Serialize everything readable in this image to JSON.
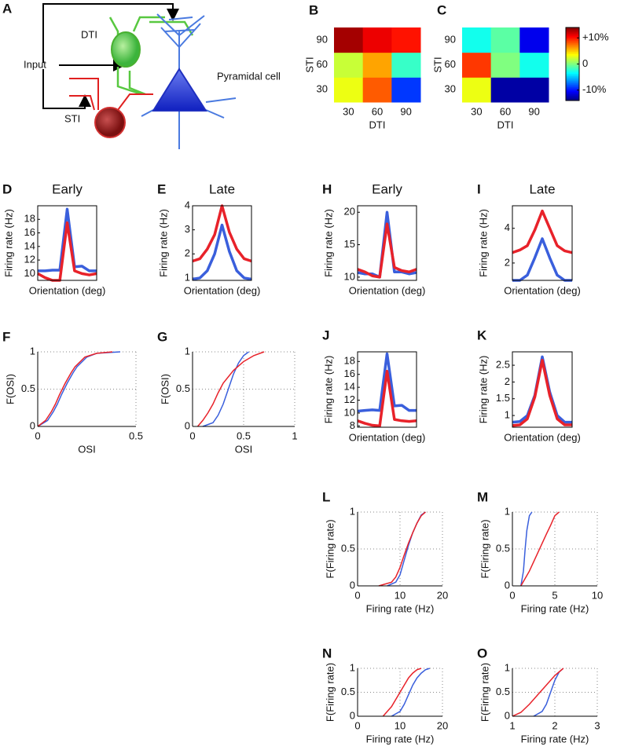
{
  "diagram": {
    "panel": "A",
    "labels": {
      "dti": "DTI",
      "input": "Input",
      "sti": "STI",
      "pyramidal": "Pyramidal cell"
    }
  },
  "chart_data": [
    {
      "type": "heatmap",
      "panel": "B",
      "xlabel": "DTI",
      "ylabel": "STI",
      "categories": [
        30,
        60,
        90
      ],
      "y_categories": [
        30,
        60,
        90
      ],
      "values": [
        [
          3,
          8,
          -9
        ],
        [
          2,
          6,
          -2
        ],
        [
          13,
          11,
          10
        ]
      ]
    },
    {
      "type": "heatmap",
      "panel": "C",
      "xlabel": "DTI",
      "ylabel": "STI",
      "categories": [
        30,
        60,
        90
      ],
      "y_categories": [
        30,
        60,
        90
      ],
      "values": [
        [
          3,
          -13,
          -13
        ],
        [
          9,
          0,
          -3
        ],
        [
          -3,
          -1,
          -11
        ]
      ]
    },
    {
      "type": "colorbar",
      "zlim": [
        -14,
        14
      ],
      "zticks": [
        {
          "value": 10,
          "label": "+10%"
        },
        0,
        {
          "value": -10,
          "label": "-10%"
        }
      ]
    },
    {
      "type": "line",
      "panel": "D",
      "title": "Early",
      "xlabel": "Orientation (deg)",
      "ylabel": "Firing rate (Hz)",
      "categories": [
        null,
        null,
        null,
        null,
        null,
        null,
        null,
        null,
        null
      ],
      "ylim": [
        9,
        20
      ],
      "yticks": [
        10,
        12,
        14,
        16,
        18
      ],
      "series": [
        {
          "color": "#3a5fdc",
          "values": [
            10.4,
            10.4,
            10.5,
            10.5,
            19.5,
            11,
            11.1,
            10.4,
            10.4
          ]
        },
        {
          "color": "#e8222a",
          "values": [
            10,
            9.4,
            9,
            9,
            17.5,
            10.4,
            10,
            9.8,
            10
          ]
        }
      ]
    },
    {
      "type": "line",
      "panel": "E",
      "title": "Late",
      "xlabel": "Orientation (deg)",
      "ylabel": "Firing rate (Hz)",
      "categories": [
        null,
        null,
        null,
        null,
        null,
        null,
        null,
        null,
        null
      ],
      "ylim": [
        0.9,
        4
      ],
      "yticks": [
        1,
        2,
        3,
        4
      ],
      "series": [
        {
          "color": "#3a5fdc",
          "values": [
            0.95,
            1.0,
            1.3,
            2.0,
            3.2,
            2.1,
            1.3,
            1.0,
            0.95
          ]
        },
        {
          "color": "#e8222a",
          "values": [
            1.7,
            1.8,
            2.2,
            2.8,
            4.0,
            2.9,
            2.2,
            1.8,
            1.7
          ]
        }
      ]
    },
    {
      "type": "line",
      "panel": "H",
      "title": "Early",
      "xlabel": "Orientation (deg)",
      "ylabel": "Firing rate (Hz)",
      "categories": [
        null,
        null,
        null,
        null,
        null,
        null,
        null,
        null,
        null
      ],
      "ylim": [
        9.5,
        21
      ],
      "yticks": [
        10,
        15,
        20
      ],
      "series": [
        {
          "color": "#3a5fdc",
          "values": [
            10.7,
            10.5,
            10.5,
            10,
            20,
            10.8,
            10.8,
            10.5,
            10.7
          ]
        },
        {
          "color": "#e8222a",
          "values": [
            11.2,
            10.8,
            10.2,
            10,
            18.2,
            11.5,
            11,
            10.8,
            11.2
          ]
        }
      ]
    },
    {
      "type": "line",
      "panel": "I",
      "title": "Late",
      "xlabel": "Orientation (deg)",
      "ylabel": "Firing rate (Hz)",
      "categories": [
        null,
        null,
        null,
        null,
        null,
        null,
        null,
        null,
        null
      ],
      "ylim": [
        1,
        5.3
      ],
      "yticks": [
        2,
        4
      ],
      "series": [
        {
          "color": "#3a5fdc",
          "values": [
            1,
            1,
            1.3,
            2.3,
            3.4,
            2.3,
            1.3,
            1,
            1
          ]
        },
        {
          "color": "#e8222a",
          "values": [
            2.6,
            2.75,
            3,
            3.9,
            5.0,
            4.0,
            3.0,
            2.7,
            2.6
          ]
        }
      ]
    },
    {
      "type": "line",
      "panel": "J",
      "xlabel": "Orientation (deg)",
      "ylabel": "Firing rate (Hz)",
      "categories": [
        null,
        null,
        null,
        null,
        null,
        null,
        null,
        null,
        null
      ],
      "ylim": [
        7.8,
        19.5
      ],
      "yticks": [
        8,
        10,
        12,
        14,
        16,
        18
      ],
      "series": [
        {
          "color": "#3a5fdc",
          "values": [
            10.3,
            10.4,
            10.5,
            10.4,
            19.2,
            11.1,
            11.2,
            10.4,
            10.4
          ]
        },
        {
          "color": "#e8222a",
          "values": [
            8.8,
            8.4,
            8.1,
            8,
            16.5,
            9,
            8.8,
            8.7,
            8.8
          ]
        }
      ]
    },
    {
      "type": "line",
      "panel": "K",
      "xlabel": "Orientation (deg)",
      "ylabel": "Firing rate (Hz)",
      "categories": [
        null,
        null,
        null,
        null,
        null,
        null,
        null,
        null,
        null
      ],
      "ylim": [
        0.65,
        2.9
      ],
      "yticks": [
        1,
        1.5,
        2,
        2.5
      ],
      "series": [
        {
          "color": "#3a5fdc",
          "values": [
            0.8,
            0.82,
            1.0,
            1.6,
            2.75,
            1.7,
            1.0,
            0.8,
            0.8
          ]
        },
        {
          "color": "#e8222a",
          "values": [
            0.7,
            0.72,
            0.9,
            1.55,
            2.65,
            1.6,
            0.9,
            0.72,
            0.72
          ]
        }
      ]
    },
    {
      "type": "cdf",
      "panel": "F",
      "xlabel": "OSI",
      "ylabel": "F(OSI)",
      "xlim": [
        0,
        0.5
      ],
      "xticks": [
        0,
        0.5
      ],
      "ylim": [
        0,
        1
      ],
      "yticks": [
        0,
        0.5,
        1
      ],
      "grid": true,
      "series": [
        {
          "color": "#3a5fdc",
          "x": [
            0,
            0.05,
            0.08,
            0.1,
            0.12,
            0.15,
            0.18,
            0.2,
            0.25,
            0.3,
            0.42
          ],
          "values": [
            0,
            0.08,
            0.2,
            0.3,
            0.42,
            0.58,
            0.72,
            0.8,
            0.93,
            0.98,
            1
          ]
        },
        {
          "color": "#e8222a",
          "x": [
            0,
            0.04,
            0.07,
            0.09,
            0.11,
            0.14,
            0.17,
            0.19,
            0.24,
            0.3,
            0.38
          ],
          "values": [
            0,
            0.08,
            0.2,
            0.3,
            0.42,
            0.58,
            0.72,
            0.8,
            0.93,
            0.98,
            1
          ]
        }
      ]
    },
    {
      "type": "cdf",
      "panel": "G",
      "xlabel": "OSI",
      "ylabel": "F(OSI)",
      "xlim": [
        0,
        1
      ],
      "xticks": [
        0,
        0.5,
        1
      ],
      "ylim": [
        0,
        1
      ],
      "yticks": [
        0,
        0.5,
        1
      ],
      "grid": true,
      "series": [
        {
          "color": "#3a5fdc",
          "x": [
            0.1,
            0.2,
            0.25,
            0.3,
            0.35,
            0.4,
            0.45,
            0.5,
            0.55
          ],
          "values": [
            0,
            0.05,
            0.15,
            0.3,
            0.5,
            0.7,
            0.85,
            0.95,
            1
          ]
        },
        {
          "color": "#e8222a",
          "x": [
            0.05,
            0.1,
            0.15,
            0.2,
            0.25,
            0.3,
            0.4,
            0.5,
            0.6,
            0.7
          ],
          "values": [
            0,
            0.08,
            0.18,
            0.3,
            0.45,
            0.58,
            0.75,
            0.87,
            0.95,
            1
          ]
        }
      ]
    },
    {
      "type": "cdf",
      "panel": "L",
      "xlabel": "Firing rate (Hz)",
      "ylabel": "F(Firing rate)",
      "xlim": [
        0,
        20
      ],
      "xticks": [
        0,
        10,
        20
      ],
      "ylim": [
        0,
        1
      ],
      "yticks": [
        0,
        0.5,
        1
      ],
      "grid": true,
      "series": [
        {
          "color": "#3a5fdc",
          "x": [
            7,
            9,
            10,
            11,
            12,
            13,
            14,
            15,
            16
          ],
          "values": [
            0,
            0.05,
            0.15,
            0.35,
            0.55,
            0.72,
            0.85,
            0.96,
            1
          ]
        },
        {
          "color": "#e8222a",
          "x": [
            5,
            8,
            9,
            10,
            11,
            12,
            13,
            14,
            15,
            16
          ],
          "values": [
            0,
            0.05,
            0.12,
            0.25,
            0.42,
            0.58,
            0.72,
            0.85,
            0.95,
            1
          ]
        }
      ]
    },
    {
      "type": "cdf",
      "panel": "M",
      "xlabel": "Firing rate (Hz)",
      "ylabel": "F(Firing rate)",
      "xlim": [
        0,
        10
      ],
      "xticks": [
        0,
        5,
        10
      ],
      "ylim": [
        0,
        1
      ],
      "yticks": [
        0,
        0.5,
        1
      ],
      "grid": true,
      "series": [
        {
          "color": "#3a5fdc",
          "x": [
            1,
            1.3,
            1.5,
            1.7,
            2,
            2.3
          ],
          "values": [
            0,
            0.2,
            0.5,
            0.75,
            0.95,
            1
          ]
        },
        {
          "color": "#e8222a",
          "x": [
            1,
            1.5,
            2,
            3,
            4,
            4.5,
            5,
            5.5
          ],
          "values": [
            0,
            0.1,
            0.2,
            0.45,
            0.7,
            0.82,
            0.95,
            1
          ]
        }
      ]
    },
    {
      "type": "cdf",
      "panel": "N",
      "xlabel": "Firing rate (Hz)",
      "ylabel": "F(Firing rate)",
      "xlim": [
        0,
        20
      ],
      "xticks": [
        0,
        10,
        20
      ],
      "ylim": [
        0,
        1
      ],
      "yticks": [
        0,
        0.5,
        1
      ],
      "grid": true,
      "series": [
        {
          "color": "#3a5fdc",
          "x": [
            8,
            10,
            11,
            12,
            13,
            14,
            15,
            16,
            17
          ],
          "values": [
            0,
            0.1,
            0.25,
            0.45,
            0.65,
            0.8,
            0.9,
            0.97,
            1
          ]
        },
        {
          "color": "#e8222a",
          "x": [
            6,
            7,
            8,
            9,
            10,
            11,
            12,
            13,
            14,
            15
          ],
          "values": [
            0,
            0.1,
            0.2,
            0.35,
            0.5,
            0.65,
            0.8,
            0.9,
            0.97,
            1
          ]
        }
      ]
    },
    {
      "type": "cdf",
      "panel": "O",
      "xlabel": "Firing rate (Hz)",
      "ylabel": "F(Firing rate)",
      "xlim": [
        1,
        3
      ],
      "xticks": [
        1,
        2,
        3
      ],
      "ylim": [
        0,
        1
      ],
      "yticks": [
        0,
        0.5,
        1
      ],
      "grid": true,
      "series": [
        {
          "color": "#3a5fdc",
          "x": [
            1.5,
            1.7,
            1.8,
            1.9,
            2.0,
            2.1,
            2.2
          ],
          "values": [
            0,
            0.1,
            0.25,
            0.5,
            0.75,
            0.92,
            1
          ]
        },
        {
          "color": "#e8222a",
          "x": [
            1,
            1.2,
            1.4,
            1.6,
            1.8,
            2.0,
            2.2
          ],
          "values": [
            0,
            0.08,
            0.25,
            0.45,
            0.65,
            0.85,
            1
          ]
        }
      ]
    }
  ]
}
